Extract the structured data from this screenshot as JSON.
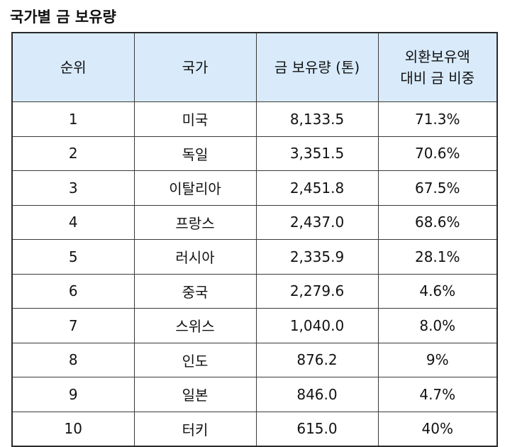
{
  "title": "국가별 금 보유량",
  "table": {
    "headers": {
      "rank": "순위",
      "country": "국가",
      "holdings": "금 보유량 (톤)",
      "ratio_line1": "외환보유액",
      "ratio_line2": "대비 금 비중"
    },
    "rows": [
      {
        "rank": "1",
        "country": "미국",
        "holdings": "8,133.5",
        "ratio": "71.3%"
      },
      {
        "rank": "2",
        "country": "독일",
        "holdings": "3,351.5",
        "ratio": "70.6%"
      },
      {
        "rank": "3",
        "country": "이탈리아",
        "holdings": "2,451.8",
        "ratio": "67.5%"
      },
      {
        "rank": "4",
        "country": "프랑스",
        "holdings": "2,437.0",
        "ratio": "68.6%"
      },
      {
        "rank": "5",
        "country": "러시아",
        "holdings": "2,335.9",
        "ratio": "28.1%"
      },
      {
        "rank": "6",
        "country": "중국",
        "holdings": "2,279.6",
        "ratio": "4.6%"
      },
      {
        "rank": "7",
        "country": "스위스",
        "holdings": "1,040.0",
        "ratio": "8.0%"
      },
      {
        "rank": "8",
        "country": "인도",
        "holdings": "876.2",
        "ratio": "9%"
      },
      {
        "rank": "9",
        "country": "일본",
        "holdings": "846.0",
        "ratio": "4.7%"
      },
      {
        "rank": "10",
        "country": "터키",
        "holdings": "615.0",
        "ratio": "40%"
      }
    ]
  },
  "colors": {
    "header_bg": "#d9ebfb",
    "border": "#3a3a3a"
  }
}
